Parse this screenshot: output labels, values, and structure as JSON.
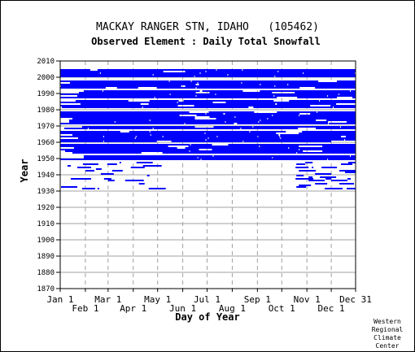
{
  "chart_data": {
    "type": "heatmap",
    "title": "MACKAY RANGER STN, IDAHO   (105462)",
    "subtitle": "Observed Element : Daily Total Snowfall",
    "xlabel": "Day of Year",
    "ylabel": "Year",
    "xlim": [
      1,
      365
    ],
    "ylim": [
      1870,
      2010
    ],
    "x_ticks_top_row": [
      {
        "label": "Jan 1",
        "day": 1
      },
      {
        "label": "Mar 1",
        "day": 60
      },
      {
        "label": "May 1",
        "day": 121
      },
      {
        "label": "Jul 1",
        "day": 182
      },
      {
        "label": "Sep 1",
        "day": 244
      },
      {
        "label": "Nov 1",
        "day": 305
      },
      {
        "label": "Dec 31",
        "day": 365
      }
    ],
    "x_ticks_bottom_row": [
      {
        "label": "Feb 1",
        "day": 32
      },
      {
        "label": "Apr 1",
        "day": 91
      },
      {
        "label": "Jun 1",
        "day": 152
      },
      {
        "label": "Aug 1",
        "day": 213
      },
      {
        "label": "Oct 1",
        "day": 274
      },
      {
        "label": "Dec 1",
        "day": 335
      }
    ],
    "y_ticks": [
      1870,
      1880,
      1890,
      1900,
      1910,
      1920,
      1930,
      1940,
      1950,
      1960,
      1970,
      1980,
      1990,
      2000,
      2010
    ],
    "grid": true,
    "mark_color": "#0000ff",
    "data_regions": [
      {
        "from_day": 1,
        "to_day": 365,
        "from_year": 1948,
        "to_year": 2005,
        "coverage": "dense"
      },
      {
        "from_day": 1,
        "to_day": 365,
        "from_year": 1931,
        "to_year": 1948,
        "coverage": "sparse"
      }
    ]
  },
  "footer": {
    "credit_lines": [
      "Western",
      "Regional",
      "Climate",
      "Center"
    ]
  }
}
